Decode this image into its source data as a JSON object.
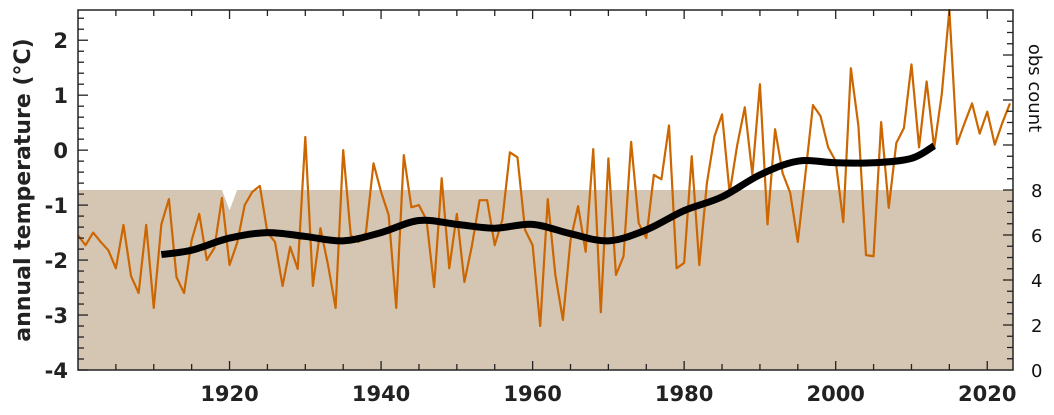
{
  "chart_data": {
    "type": "line",
    "title": "",
    "xlabel": "",
    "ylabel": "annual temperature (°C)",
    "y2label": "obs count",
    "xlim": [
      1900,
      2023.4
    ],
    "ylim": [
      -4,
      2.55
    ],
    "y2lim": [
      0,
      16
    ],
    "xticks": [
      1920,
      1940,
      1960,
      1980,
      2000,
      2020
    ],
    "yticks": [
      -4,
      -3,
      -2,
      -1,
      0,
      1,
      2
    ],
    "y2ticks": [
      0,
      2,
      4,
      6,
      8
    ],
    "grid": false,
    "colors": {
      "annual": "#cc6600",
      "smooth": "#000000",
      "obs": "#d5c6b4"
    },
    "series": [
      {
        "name": "annual temperature",
        "x_start": 1900,
        "values": [
          -1.55,
          -1.73,
          -1.5,
          -1.67,
          -1.82,
          -2.15,
          -1.36,
          -2.29,
          -2.6,
          -1.36,
          -2.87,
          -1.35,
          -0.89,
          -2.31,
          -2.6,
          -1.64,
          -1.16,
          -2.0,
          -1.78,
          -0.87,
          -2.09,
          -1.69,
          -1.0,
          -0.76,
          -0.65,
          -1.5,
          -1.67,
          -2.47,
          -1.76,
          -2.16,
          0.24,
          -2.47,
          -1.42,
          -2.09,
          -2.87,
          0.0,
          -1.55,
          -1.67,
          -1.5,
          -0.24,
          -0.76,
          -1.18,
          -2.87,
          -0.09,
          -1.04,
          -1.0,
          -1.27,
          -2.49,
          -0.51,
          -2.15,
          -1.16,
          -2.4,
          -1.73,
          -0.91,
          -0.91,
          -1.73,
          -1.27,
          -0.04,
          -0.13,
          -1.45,
          -1.73,
          -3.2,
          -0.89,
          -2.27,
          -3.09,
          -1.64,
          -1.02,
          -1.85,
          0.02,
          -2.95,
          -0.15,
          -2.27,
          -1.93,
          0.15,
          -1.33,
          -1.6,
          -0.45,
          -0.53,
          0.45,
          -2.15,
          -2.05,
          -0.11,
          -2.09,
          -0.6,
          0.25,
          0.65,
          -0.78,
          0.09,
          0.78,
          -0.44,
          1.2,
          -1.35,
          0.38,
          -0.42,
          -0.78,
          -1.67,
          -0.44,
          0.82,
          0.62,
          0.05,
          -0.2,
          -1.31,
          1.49,
          0.44,
          -1.91,
          -1.93,
          0.51,
          -1.05,
          0.13,
          0.4,
          1.56,
          0.05,
          1.25,
          0.04,
          1.02,
          2.55,
          0.11,
          0.49,
          0.85,
          0.3,
          0.7,
          0.1,
          0.5,
          0.85
        ]
      },
      {
        "name": "smoothed",
        "x": [
          1911,
          1915,
          1920,
          1925,
          1930,
          1935,
          1940,
          1945,
          1950,
          1955,
          1960,
          1965,
          1970,
          1975,
          1980,
          1985,
          1990,
          1995,
          2000,
          2005,
          2010,
          2013
        ],
        "values": [
          -1.9,
          -1.82,
          -1.6,
          -1.5,
          -1.57,
          -1.65,
          -1.5,
          -1.28,
          -1.35,
          -1.42,
          -1.35,
          -1.52,
          -1.65,
          -1.45,
          -1.1,
          -0.85,
          -0.45,
          -0.2,
          -0.23,
          -0.23,
          -0.15,
          0.08
        ]
      },
      {
        "name": "obs count",
        "axis": "right",
        "x": [
          1900,
          1919,
          1920,
          1921,
          2023.4
        ],
        "values": [
          8,
          8,
          7.1,
          8,
          8
        ]
      }
    ]
  }
}
